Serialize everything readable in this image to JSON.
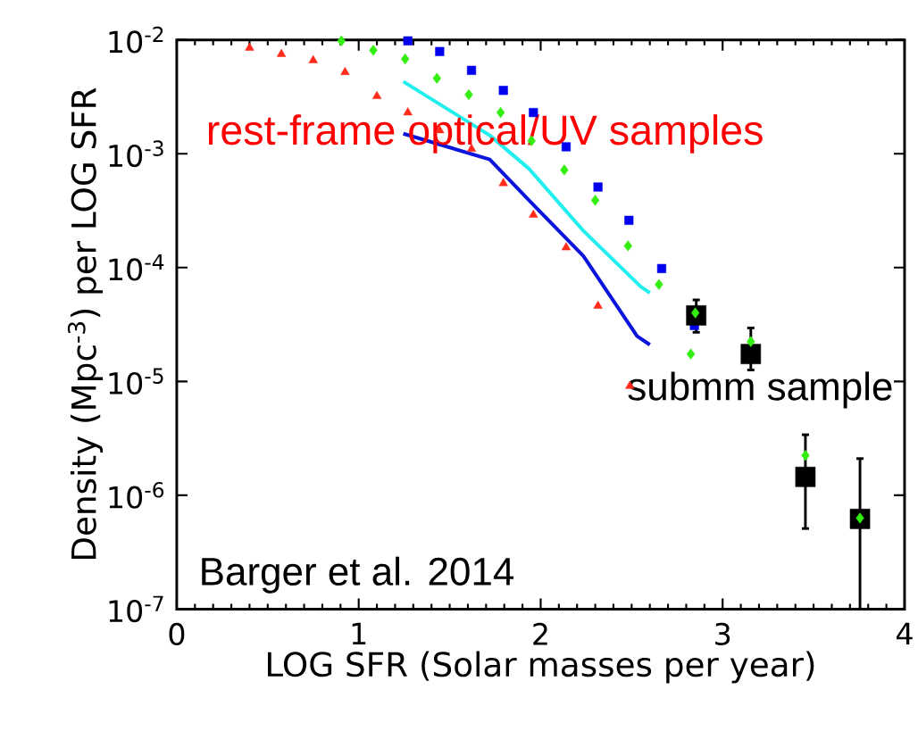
{
  "chart_data": {
    "type": "scatter",
    "xlabel": "LOG SFR (Solar masses per year)",
    "ylabel": "Density (Mpc$^{-3}$) per LOG SFR",
    "log": "y",
    "xlim": [
      0,
      4
    ],
    "xticks": [
      0,
      1,
      2,
      3,
      4
    ],
    "ylim": [
      1e-07,
      0.01
    ],
    "yticks": [
      {
        "value": 0.01,
        "label": "10$^{-2}$"
      },
      {
        "value": 0.001,
        "label": "10$^{-3}$"
      },
      {
        "value": 0.0001,
        "label": "10$^{-4}$"
      },
      {
        "value": 1e-05,
        "label": "10$^{-5}$"
      },
      {
        "value": 1e-06,
        "label": "10$^{-6}$"
      },
      {
        "value": 1e-07,
        "label": "10$^{-7}$"
      }
    ],
    "grid": false,
    "annotations": [
      "rest-frame optical/UV samples",
      "submm sample",
      "Barger et al. 2014"
    ],
    "series": [
      {
        "marker": "triangle",
        "color": "#ff2a1a",
        "x": [
          0.4,
          0.575,
          0.75,
          0.925,
          1.1,
          1.27,
          1.445,
          1.62,
          1.795,
          1.96,
          2.14,
          2.315,
          2.49
        ],
        "values": [
          0.0085,
          0.0075,
          0.0066,
          0.0052,
          0.0032,
          0.0023,
          0.0016,
          0.0011,
          0.00055,
          0.00029,
          0.00015,
          4.6e-05,
          9.1e-06
        ]
      },
      {
        "marker": "diamond",
        "color": "#33ee11",
        "x": [
          0.905,
          1.08,
          1.255,
          1.43,
          1.605,
          1.78,
          1.95,
          2.13,
          2.3,
          2.48,
          2.65,
          2.825
        ],
        "values": [
          0.0098,
          0.0081,
          0.0068,
          0.0046,
          0.0033,
          0.0023,
          0.0013,
          0.00072,
          0.00039,
          0.000155,
          7.1e-05,
          1.74e-05
        ]
      },
      {
        "marker": "square",
        "color": "#0000ee",
        "x": [
          1.27,
          1.445,
          1.62,
          1.795,
          1.96,
          2.14,
          2.315,
          2.485,
          2.665,
          2.845
        ],
        "values": [
          0.0098,
          0.0079,
          0.0054,
          0.0036,
          0.0023,
          0.00115,
          0.00051,
          0.00026,
          9.8e-05,
          3.1e-05
        ]
      },
      {
        "type": "line",
        "marker": "none",
        "color": "#22eeee",
        "x": [
          1.245,
          1.72,
          1.935,
          2.235,
          2.55,
          2.6
        ],
        "values": [
          0.0043,
          0.00145,
          0.00074,
          0.00021,
          6.8e-05,
          6e-05
        ]
      },
      {
        "type": "line",
        "marker": "none",
        "color": "#0a14dd",
        "x": [
          1.245,
          1.72,
          1.95,
          2.235,
          2.53,
          2.6
        ],
        "values": [
          0.0015,
          0.00089,
          0.00037,
          0.000126,
          2.5e-05,
          2.1e-05
        ]
      },
      {
        "marker": "square",
        "color": "#000000",
        "x": [
          2.855,
          3.155,
          3.455,
          3.755
        ],
        "values": [
          3.8e-05,
          1.74e-05,
          1.45e-06,
          6.2e-07
        ],
        "errors": [
          [
            2.7e-05,
            5.2e-05
          ],
          [
            1.26e-05,
            2.95e-05
          ],
          [
            5.1e-07,
            3.4e-06
          ],
          [
            1e-07,
            2.1e-06
          ]
        ]
      },
      {
        "marker": "diamond",
        "color": "#33ee11",
        "x": [
          2.85,
          3.155,
          3.455,
          3.755
        ],
        "values": [
          4e-05,
          2.24e-05,
          2.24e-06,
          6.3e-07
        ]
      }
    ]
  }
}
